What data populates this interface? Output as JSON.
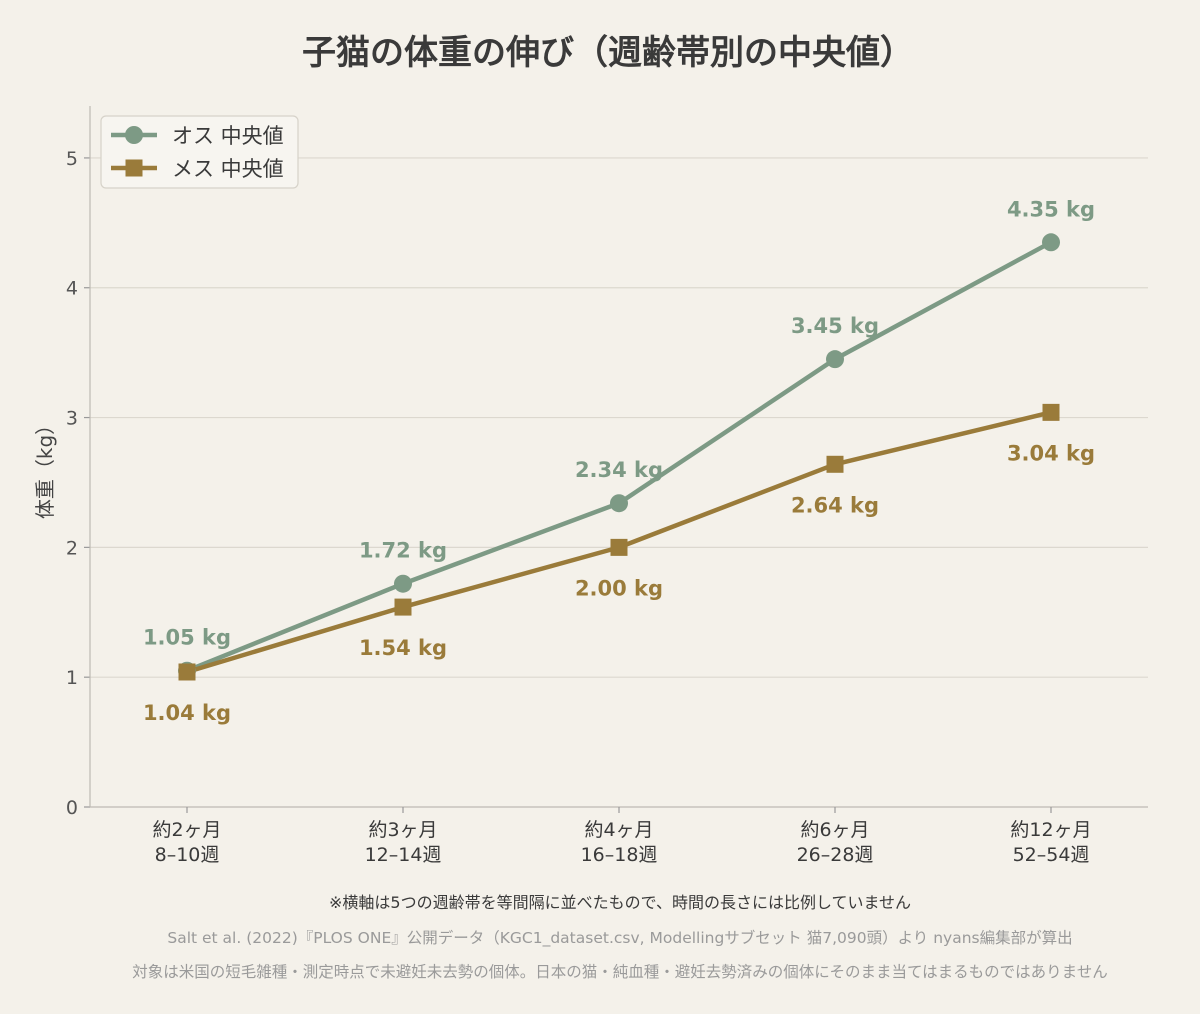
{
  "chart_data": {
    "type": "line",
    "title": "子猫の体重の伸び（週齢帯別の中央値）",
    "ylabel": "体重（kg）",
    "xlabel": "",
    "ylim": [
      0,
      5.4
    ],
    "yticks": [
      "0",
      "1",
      "2",
      "3",
      "4",
      "5"
    ],
    "grid": true,
    "legend_position": "top-left",
    "categories": [
      {
        "line1": "約2ヶ月",
        "line2": "8–10週"
      },
      {
        "line1": "約3ヶ月",
        "line2": "12–14週"
      },
      {
        "line1": "約4ヶ月",
        "line2": "16–18週"
      },
      {
        "line1": "約6ヶ月",
        "line2": "26–28週"
      },
      {
        "line1": "約12ヶ月",
        "line2": "52–54週"
      }
    ],
    "series": [
      {
        "name": "オス 中央値",
        "marker": "circle",
        "color": "#7d9a85",
        "values": [
          1.05,
          1.72,
          2.34,
          3.45,
          4.35
        ],
        "labels": [
          "1.05 kg",
          "1.72 kg",
          "2.34 kg",
          "3.45 kg",
          "4.35 kg"
        ],
        "label_position": "above"
      },
      {
        "name": "メス 中央値",
        "marker": "square",
        "color": "#9a7b3a",
        "values": [
          1.04,
          1.54,
          2.0,
          2.64,
          3.04
        ],
        "labels": [
          "1.04 kg",
          "1.54 kg",
          "2.00 kg",
          "2.64 kg",
          "3.04 kg"
        ],
        "label_position": "below"
      }
    ],
    "notes": [
      "※横軸は5つの週齢帯を等間隔に並べたもので、時間の長さには比例していません",
      "Salt et al. (2022)『PLOS ONE』公開データ（KGC1_dataset.csv, Modellingサブセット 猫7,090頭）より nyans編集部が算出",
      "対象は米国の短毛雑種・測定時点で未避妊未去勢の個体。日本の猫・純血種・避妊去勢済みの個体にそのまま当てはまるものではありません"
    ]
  }
}
